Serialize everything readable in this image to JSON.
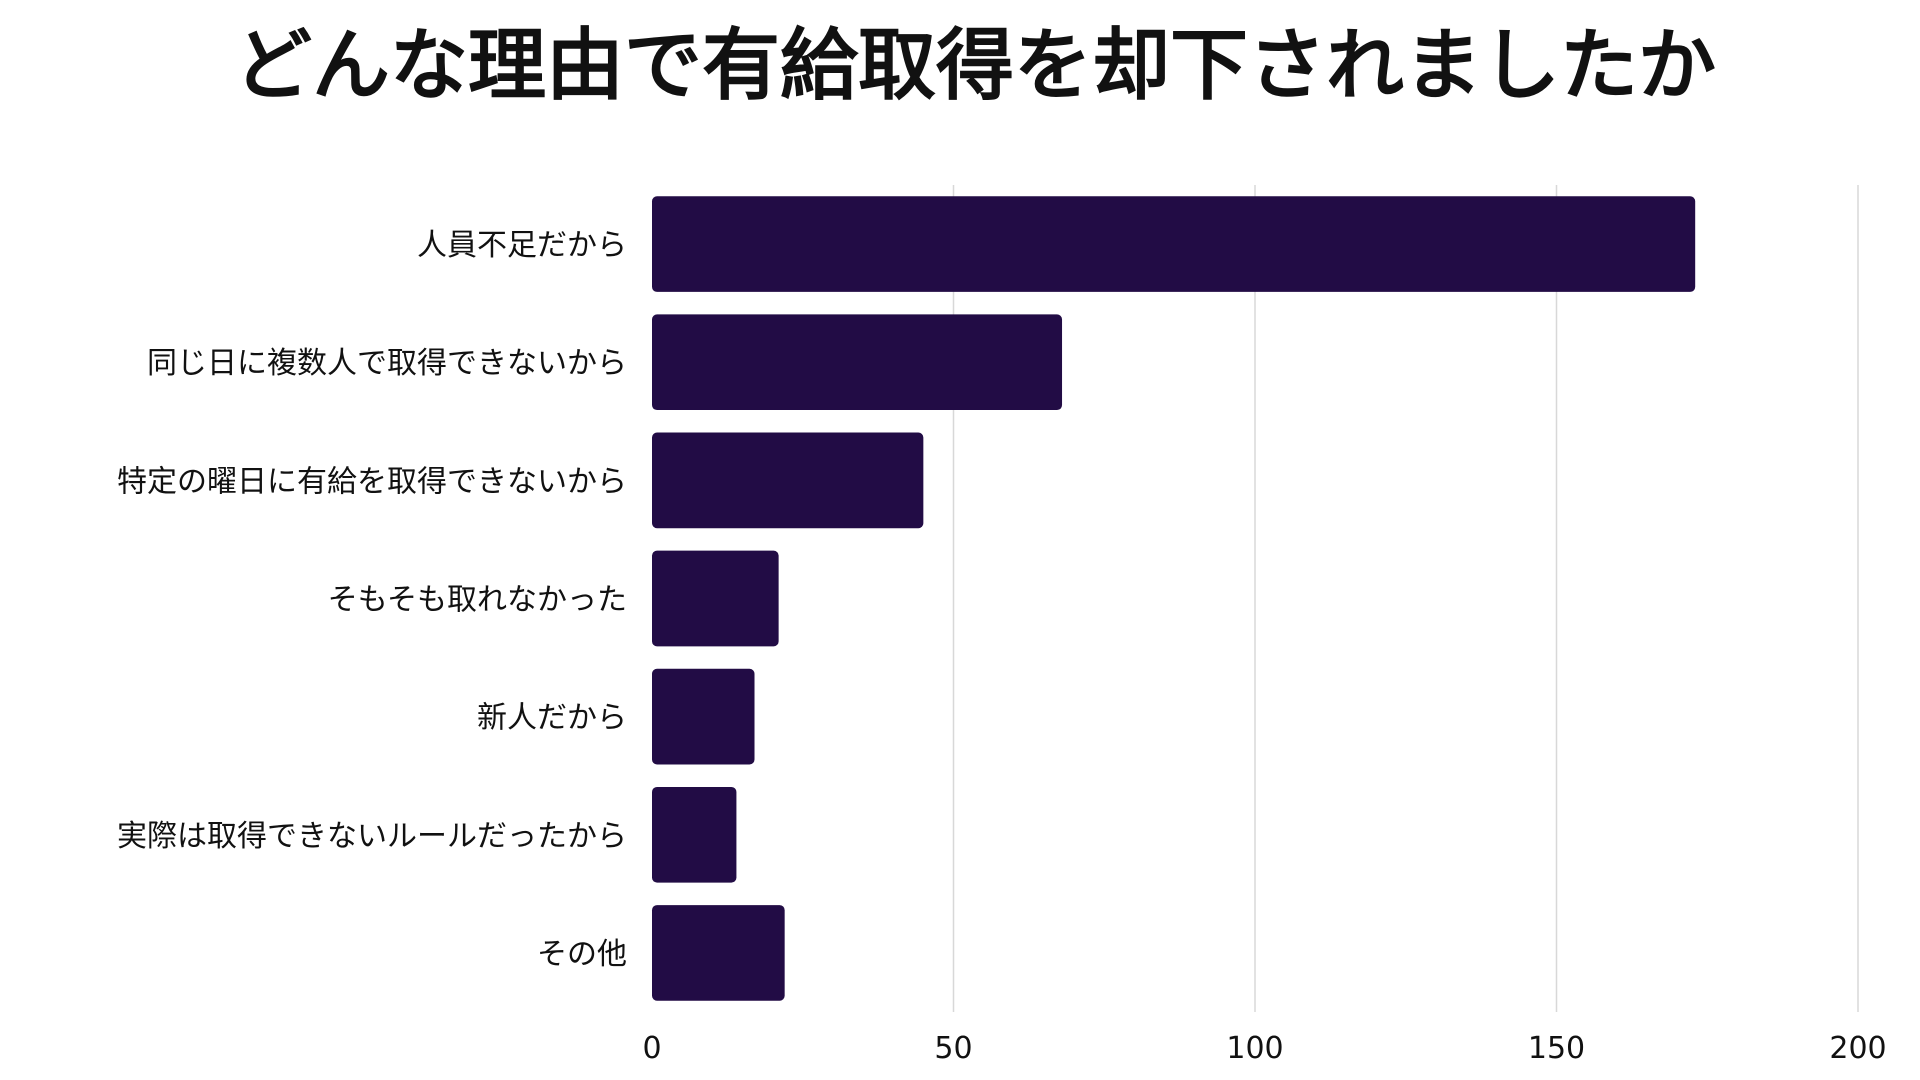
{
  "chart_data": {
    "type": "bar",
    "orientation": "horizontal",
    "title": "どんな理由で有給取得を却下されましたか",
    "xlabel": "",
    "ylabel": "",
    "categories": [
      "人員不足だから",
      "同じ日に複数人で取得できないから",
      "特定の曜日に有給を取得できないから",
      "そもそも取れなかった",
      "新人だから",
      "実際は取得できないルールだったから",
      "その他"
    ],
    "values": [
      173,
      68,
      45,
      21,
      17,
      14,
      22
    ],
    "xlim": [
      0,
      200
    ],
    "xticks": [
      0,
      50,
      100,
      150,
      200
    ],
    "grid": "vertical",
    "legend": "none",
    "bar_color": "#220c45"
  }
}
